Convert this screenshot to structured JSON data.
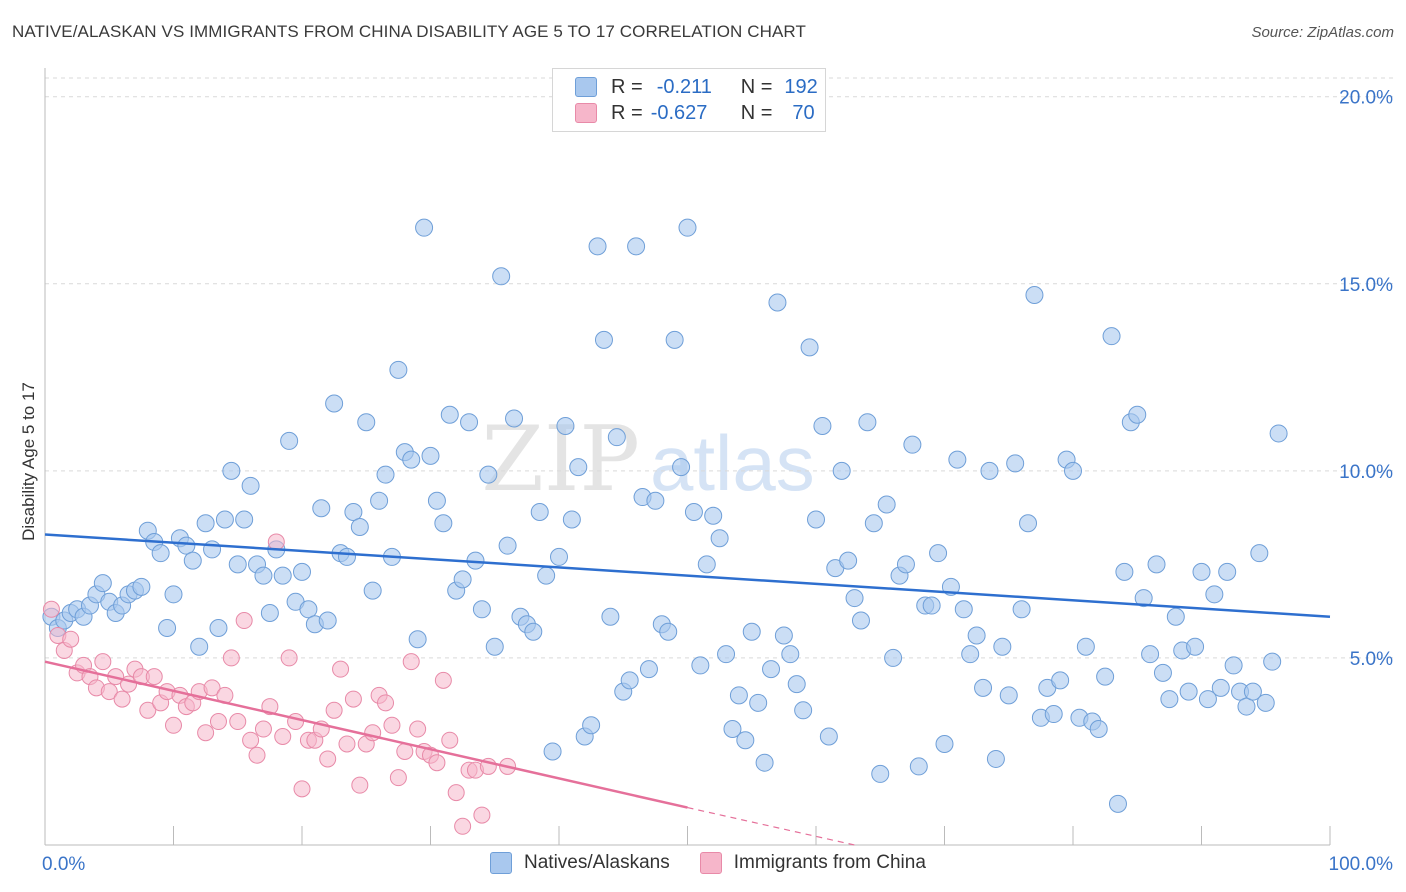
{
  "header": {
    "title": "NATIVE/ALASKAN VS IMMIGRANTS FROM CHINA DISABILITY AGE 5 TO 17 CORRELATION CHART",
    "source": "Source: ZipAtlas.com"
  },
  "legend": {
    "r_label": "R =",
    "n_label": "N =",
    "rows": [
      {
        "r": "-0.211",
        "n": "192"
      },
      {
        "r": "-0.627",
        "n": "70"
      }
    ]
  },
  "bottom_legend": {
    "items": [
      "Natives/Alaskans",
      "Immigrants from China"
    ]
  },
  "watermark": {
    "part1": "ZIP",
    "part2": "atlas"
  },
  "colors": {
    "blue_fill": "#a9c8ee",
    "blue_stroke": "#6f9fd8",
    "blue_line": "#2e6fcf",
    "pink_fill": "#f6b6ca",
    "pink_stroke": "#e88aa8",
    "pink_line": "#e5709a",
    "tick_text": "#3a74c8",
    "grid": "#d9d9d9"
  },
  "chart_data": {
    "type": "scatter",
    "title": "NATIVE/ALASKAN VS IMMIGRANTS FROM CHINA DISABILITY AGE 5 TO 17 CORRELATION CHART",
    "ylabel": "Disability Age 5 to 17",
    "xlabel": "",
    "xlim": [
      0,
      100
    ],
    "ylim": [
      0,
      20.5
    ],
    "x_tick_labels": [
      "0.0%",
      "100.0%"
    ],
    "y_ticks": [
      5,
      10,
      15,
      20
    ],
    "y_tick_labels": [
      "5.0%",
      "10.0%",
      "15.0%",
      "20.0%"
    ],
    "grid": true,
    "legend_position": "top-center",
    "series": [
      {
        "name": "Natives/Alaskans",
        "r": -0.211,
        "n": 192,
        "trend": {
          "x0": 0,
          "y0": 8.3,
          "x1": 100,
          "y1": 6.1
        },
        "points": [
          [
            0.5,
            6.1
          ],
          [
            1,
            5.8
          ],
          [
            1.5,
            6.0
          ],
          [
            2,
            6.2
          ],
          [
            2.5,
            6.3
          ],
          [
            3,
            6.1
          ],
          [
            3.5,
            6.4
          ],
          [
            4,
            6.7
          ],
          [
            4.5,
            7.0
          ],
          [
            5,
            6.5
          ],
          [
            5.5,
            6.2
          ],
          [
            6,
            6.4
          ],
          [
            6.5,
            6.7
          ],
          [
            7,
            6.8
          ],
          [
            7.5,
            6.9
          ],
          [
            8,
            8.4
          ],
          [
            8.5,
            8.1
          ],
          [
            9,
            7.8
          ],
          [
            9.5,
            5.8
          ],
          [
            10,
            6.7
          ],
          [
            10.5,
            8.2
          ],
          [
            11,
            8.0
          ],
          [
            11.5,
            7.6
          ],
          [
            12,
            5.3
          ],
          [
            12.5,
            8.6
          ],
          [
            13,
            7.9
          ],
          [
            13.5,
            5.8
          ],
          [
            14,
            8.7
          ],
          [
            14.5,
            10.0
          ],
          [
            15,
            7.5
          ],
          [
            15.5,
            8.7
          ],
          [
            16,
            9.6
          ],
          [
            16.5,
            7.5
          ],
          [
            17,
            7.2
          ],
          [
            17.5,
            6.2
          ],
          [
            18,
            7.9
          ],
          [
            18.5,
            7.2
          ],
          [
            19,
            10.8
          ],
          [
            19.5,
            6.5
          ],
          [
            20,
            7.3
          ],
          [
            20.5,
            6.3
          ],
          [
            21,
            5.9
          ],
          [
            21.5,
            9.0
          ],
          [
            22,
            6.0
          ],
          [
            22.5,
            11.8
          ],
          [
            23,
            7.8
          ],
          [
            23.5,
            7.7
          ],
          [
            24,
            8.9
          ],
          [
            24.5,
            8.5
          ],
          [
            25,
            11.3
          ],
          [
            25.5,
            6.8
          ],
          [
            26,
            9.2
          ],
          [
            26.5,
            9.9
          ],
          [
            27,
            7.7
          ],
          [
            27.5,
            12.7
          ],
          [
            28,
            10.5
          ],
          [
            28.5,
            10.3
          ],
          [
            29,
            5.5
          ],
          [
            29.5,
            16.5
          ],
          [
            30,
            10.4
          ],
          [
            30.5,
            9.2
          ],
          [
            31,
            8.6
          ],
          [
            31.5,
            11.5
          ],
          [
            32,
            6.8
          ],
          [
            32.5,
            7.1
          ],
          [
            33,
            11.3
          ],
          [
            33.5,
            7.6
          ],
          [
            34,
            6.3
          ],
          [
            34.5,
            9.9
          ],
          [
            35,
            5.3
          ],
          [
            35.5,
            15.2
          ],
          [
            36,
            8.0
          ],
          [
            36.5,
            11.4
          ],
          [
            37,
            6.1
          ],
          [
            37.5,
            5.9
          ],
          [
            38,
            5.7
          ],
          [
            38.5,
            8.9
          ],
          [
            39,
            7.2
          ],
          [
            39.5,
            2.5
          ],
          [
            40,
            7.7
          ],
          [
            40.5,
            11.2
          ],
          [
            41,
            8.7
          ],
          [
            41.5,
            10.1
          ],
          [
            42,
            2.9
          ],
          [
            42.5,
            3.2
          ],
          [
            43,
            16.0
          ],
          [
            43.5,
            13.5
          ],
          [
            44,
            6.1
          ],
          [
            44.5,
            10.9
          ],
          [
            45,
            4.1
          ],
          [
            45.5,
            4.4
          ],
          [
            46,
            16.0
          ],
          [
            46.5,
            9.3
          ],
          [
            47,
            4.7
          ],
          [
            47.5,
            9.2
          ],
          [
            48,
            5.9
          ],
          [
            48.5,
            5.7
          ],
          [
            49,
            13.5
          ],
          [
            49.5,
            10.1
          ],
          [
            50,
            16.5
          ],
          [
            50.5,
            8.9
          ],
          [
            51,
            4.8
          ],
          [
            51.5,
            7.5
          ],
          [
            52,
            8.8
          ],
          [
            52.5,
            8.2
          ],
          [
            53,
            5.1
          ],
          [
            53.5,
            3.1
          ],
          [
            54,
            4.0
          ],
          [
            54.5,
            2.8
          ],
          [
            55,
            5.7
          ],
          [
            55.5,
            3.8
          ],
          [
            56,
            2.2
          ],
          [
            56.5,
            4.7
          ],
          [
            57,
            14.5
          ],
          [
            57.5,
            5.6
          ],
          [
            58,
            5.1
          ],
          [
            58.5,
            4.3
          ],
          [
            59,
            3.6
          ],
          [
            59.5,
            13.3
          ],
          [
            60,
            8.7
          ],
          [
            60.5,
            11.2
          ],
          [
            61,
            2.9
          ],
          [
            61.5,
            7.4
          ],
          [
            62,
            10.0
          ],
          [
            62.5,
            7.6
          ],
          [
            63,
            6.6
          ],
          [
            63.5,
            6.0
          ],
          [
            64,
            11.3
          ],
          [
            64.5,
            8.6
          ],
          [
            65,
            1.9
          ],
          [
            65.5,
            9.1
          ],
          [
            66,
            5.0
          ],
          [
            66.5,
            7.2
          ],
          [
            67,
            7.5
          ],
          [
            67.5,
            10.7
          ],
          [
            68,
            2.1
          ],
          [
            68.5,
            6.4
          ],
          [
            69,
            6.4
          ],
          [
            69.5,
            7.8
          ],
          [
            70,
            2.7
          ],
          [
            70.5,
            6.9
          ],
          [
            71,
            10.3
          ],
          [
            71.5,
            6.3
          ],
          [
            72,
            5.1
          ],
          [
            72.5,
            5.6
          ],
          [
            73,
            4.2
          ],
          [
            73.5,
            10.0
          ],
          [
            74,
            2.3
          ],
          [
            74.5,
            5.3
          ],
          [
            75,
            4.0
          ],
          [
            75.5,
            10.2
          ],
          [
            76,
            6.3
          ],
          [
            76.5,
            8.6
          ],
          [
            77,
            14.7
          ],
          [
            77.5,
            3.4
          ],
          [
            78,
            4.2
          ],
          [
            78.5,
            3.5
          ],
          [
            79,
            4.4
          ],
          [
            79.5,
            10.3
          ],
          [
            80,
            10.0
          ],
          [
            80.5,
            3.4
          ],
          [
            81,
            5.3
          ],
          [
            81.5,
            3.3
          ],
          [
            82,
            3.1
          ],
          [
            82.5,
            4.5
          ],
          [
            83,
            13.6
          ],
          [
            83.5,
            1.1
          ],
          [
            84,
            7.3
          ],
          [
            84.5,
            11.3
          ],
          [
            85,
            11.5
          ],
          [
            85.5,
            6.6
          ],
          [
            86,
            5.1
          ],
          [
            86.5,
            7.5
          ],
          [
            87,
            4.6
          ],
          [
            87.5,
            3.9
          ],
          [
            88,
            6.1
          ],
          [
            88.5,
            5.2
          ],
          [
            89,
            4.1
          ],
          [
            89.5,
            5.3
          ],
          [
            90,
            7.3
          ],
          [
            90.5,
            3.9
          ],
          [
            91,
            6.7
          ],
          [
            91.5,
            4.2
          ],
          [
            92,
            7.3
          ],
          [
            92.5,
            4.8
          ],
          [
            93,
            4.1
          ],
          [
            93.5,
            3.7
          ],
          [
            94,
            4.1
          ],
          [
            94.5,
            7.8
          ],
          [
            95,
            3.8
          ],
          [
            95.5,
            4.9
          ],
          [
            96,
            11.0
          ]
        ]
      },
      {
        "name": "Immigrants from China",
        "r": -0.627,
        "n": 70,
        "trend": {
          "x0": 0,
          "y0": 4.9,
          "x1": 50,
          "y1": 1.0
        },
        "trend_dashed_to": {
          "x": 63,
          "y": 0
        },
        "points": [
          [
            0.5,
            6.3
          ],
          [
            1,
            5.6
          ],
          [
            1.5,
            5.2
          ],
          [
            2,
            5.5
          ],
          [
            2.5,
            4.6
          ],
          [
            3,
            4.8
          ],
          [
            3.5,
            4.5
          ],
          [
            4,
            4.2
          ],
          [
            4.5,
            4.9
          ],
          [
            5,
            4.1
          ],
          [
            5.5,
            4.5
          ],
          [
            6,
            3.9
          ],
          [
            6.5,
            4.3
          ],
          [
            7,
            4.7
          ],
          [
            7.5,
            4.5
          ],
          [
            8,
            3.6
          ],
          [
            8.5,
            4.5
          ],
          [
            9,
            3.8
          ],
          [
            9.5,
            4.1
          ],
          [
            10,
            3.2
          ],
          [
            10.5,
            4.0
          ],
          [
            11,
            3.7
          ],
          [
            11.5,
            3.8
          ],
          [
            12,
            4.1
          ],
          [
            12.5,
            3.0
          ],
          [
            13,
            4.2
          ],
          [
            13.5,
            3.3
          ],
          [
            14,
            4.0
          ],
          [
            14.5,
            5.0
          ],
          [
            15,
            3.3
          ],
          [
            15.5,
            6.0
          ],
          [
            16,
            2.8
          ],
          [
            16.5,
            2.4
          ],
          [
            17,
            3.1
          ],
          [
            17.5,
            3.7
          ],
          [
            18,
            8.1
          ],
          [
            18.5,
            2.9
          ],
          [
            19,
            5.0
          ],
          [
            19.5,
            3.3
          ],
          [
            20,
            1.5
          ],
          [
            20.5,
            2.8
          ],
          [
            21,
            2.8
          ],
          [
            21.5,
            3.1
          ],
          [
            22,
            2.3
          ],
          [
            22.5,
            3.6
          ],
          [
            23,
            4.7
          ],
          [
            23.5,
            2.7
          ],
          [
            24,
            3.9
          ],
          [
            24.5,
            1.6
          ],
          [
            25,
            2.7
          ],
          [
            25.5,
            3.0
          ],
          [
            26,
            4.0
          ],
          [
            26.5,
            3.8
          ],
          [
            27,
            3.2
          ],
          [
            27.5,
            1.8
          ],
          [
            28,
            2.5
          ],
          [
            28.5,
            4.9
          ],
          [
            29,
            3.1
          ],
          [
            29.5,
            2.5
          ],
          [
            30,
            2.4
          ],
          [
            30.5,
            2.2
          ],
          [
            31,
            4.4
          ],
          [
            31.5,
            2.8
          ],
          [
            32,
            1.4
          ],
          [
            32.5,
            0.5
          ],
          [
            33,
            2.0
          ],
          [
            33.5,
            2.0
          ],
          [
            34,
            0.8
          ],
          [
            34.5,
            2.1
          ],
          [
            36,
            2.1
          ]
        ]
      }
    ]
  }
}
